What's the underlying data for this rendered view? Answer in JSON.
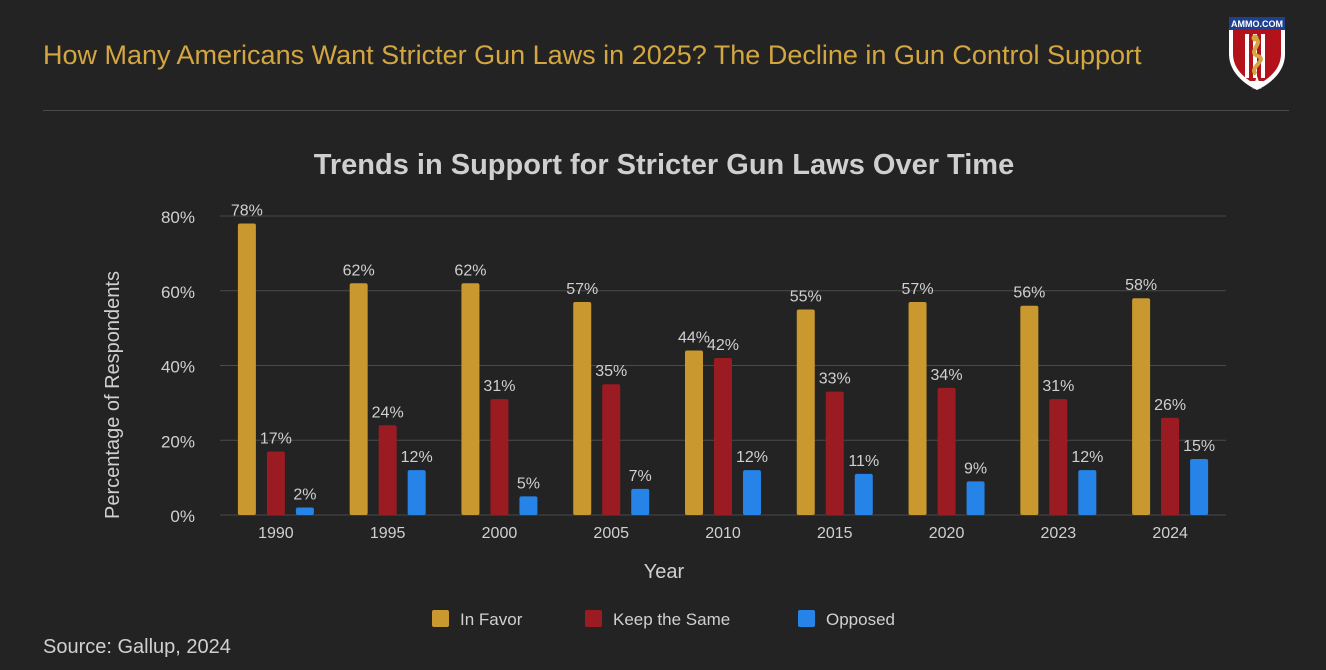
{
  "header": {
    "title": "How Many Americans Want Stricter Gun Laws in 2025? The Decline in Gun Control Support",
    "logo_text": "AMMO.COM"
  },
  "footer": {
    "source": "Source: Gallup, 2024"
  },
  "colors": {
    "accent": "#d4a640",
    "in_favor": "#c9992f",
    "keep_same": "#9b1b22",
    "opposed": "#2684e8",
    "background": "#232323",
    "grid": "#4a4a4a"
  },
  "chart_data": {
    "type": "bar",
    "title": "Trends in Support for Stricter Gun Laws Over Time",
    "xlabel": "Year",
    "ylabel": "Percentage of Respondents",
    "ylim": [
      0,
      80
    ],
    "yticks": [
      0,
      20,
      40,
      60,
      80
    ],
    "ytick_labels": [
      "0%",
      "20%",
      "40%",
      "60%",
      "80%"
    ],
    "grid": true,
    "legend_position": "bottom",
    "categories": [
      "1990",
      "1995",
      "2000",
      "2005",
      "2010",
      "2015",
      "2020",
      "2023",
      "2024"
    ],
    "series": [
      {
        "name": "In Favor",
        "values": [
          78,
          62,
          62,
          57,
          44,
          55,
          57,
          56,
          58
        ],
        "labels": [
          "78%",
          "62%",
          "62%",
          "57%",
          "44%",
          "55%",
          "57%",
          "56%",
          "58%"
        ]
      },
      {
        "name": "Keep the Same",
        "values": [
          17,
          24,
          31,
          35,
          42,
          33,
          34,
          31,
          26
        ],
        "labels": [
          "17%",
          "24%",
          "31%",
          "35%",
          "42%",
          "33%",
          "34%",
          "31%",
          "26%"
        ]
      },
      {
        "name": "Opposed",
        "values": [
          2,
          12,
          5,
          7,
          12,
          11,
          9,
          12,
          15
        ],
        "labels": [
          "2%",
          "12%",
          "5%",
          "7%",
          "12%",
          "11%",
          "9%",
          "12%",
          "15%"
        ]
      }
    ]
  }
}
